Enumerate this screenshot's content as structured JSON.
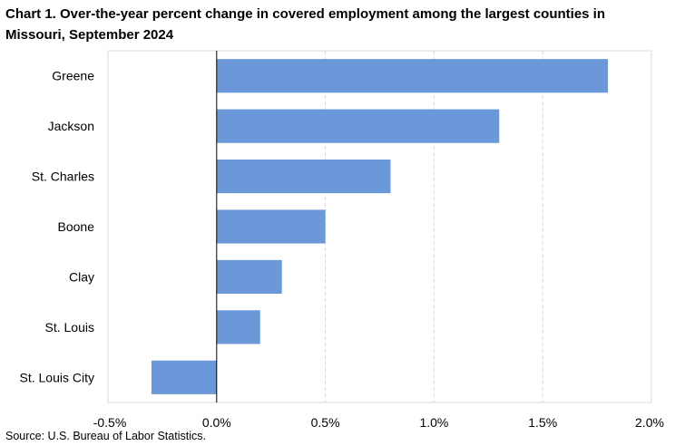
{
  "title": "Chart 1. Over-the-year percent change in covered employment among the largest counties in Missouri, September 2024",
  "source": "Source: U.S. Bureau of Labor Statistics.",
  "chart_data": {
    "type": "bar",
    "orientation": "horizontal",
    "title": "Chart 1. Over-the-year percent change in covered employment among the largest counties in Missouri, September 2024",
    "categories": [
      "Greene",
      "Jackson",
      "St. Charles",
      "Boone",
      "Clay",
      "St. Louis",
      "St. Louis City"
    ],
    "values": [
      1.8,
      1.3,
      0.8,
      0.5,
      0.3,
      0.2,
      -0.3
    ],
    "unit": "percent",
    "xlim": [
      -0.5,
      2.0
    ],
    "ticks": [
      -0.5,
      0.0,
      0.5,
      1.0,
      1.5,
      2.0
    ],
    "tick_labels": [
      "-0.5%",
      "0.0%",
      "0.5%",
      "1.0%",
      "1.5%",
      "2.0%"
    ],
    "grid": "vertical dashed",
    "legend": "none",
    "bar_color": "#6a98d8",
    "grid_color": "#d9d9d9"
  }
}
